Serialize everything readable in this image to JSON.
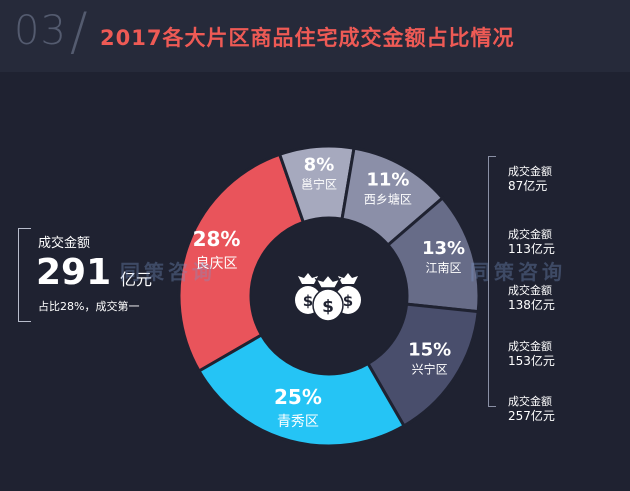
{
  "header": {
    "section_number": "03",
    "title": "2017各大片区商品住宅成交金额占比情况"
  },
  "callout": {
    "label": "成交金额",
    "value": "291",
    "unit": "亿元",
    "note": "占比28%，成交第一"
  },
  "right_labels": [
    {
      "label": "成交金额",
      "amount": "87亿元"
    },
    {
      "label": "成交金额",
      "amount": "113亿元"
    },
    {
      "label": "成交金额",
      "amount": "138亿元"
    },
    {
      "label": "成交金额",
      "amount": "153亿元"
    },
    {
      "label": "成交金额",
      "amount": "257亿元"
    }
  ],
  "watermark": {
    "text": "同策咨询"
  },
  "icon": "money-bags-icon",
  "colors": {
    "background": "#1f2231",
    "title": "#ee5a55",
    "center": "#1f2231"
  },
  "chart_data": {
    "type": "pie",
    "style": "donut",
    "categories": [
      "良庆区",
      "邕宁区",
      "西乡塘区",
      "江南区",
      "兴宁区",
      "青秀区"
    ],
    "values": [
      28,
      8,
      11,
      13,
      15,
      25
    ],
    "labels": [
      "28%",
      "8%",
      "11%",
      "13%",
      "15%",
      "25%"
    ],
    "colors": [
      "#e9545b",
      "#a6a9be",
      "#8b8fa8",
      "#676c88",
      "#494e6c",
      "#25c4f5"
    ]
  }
}
